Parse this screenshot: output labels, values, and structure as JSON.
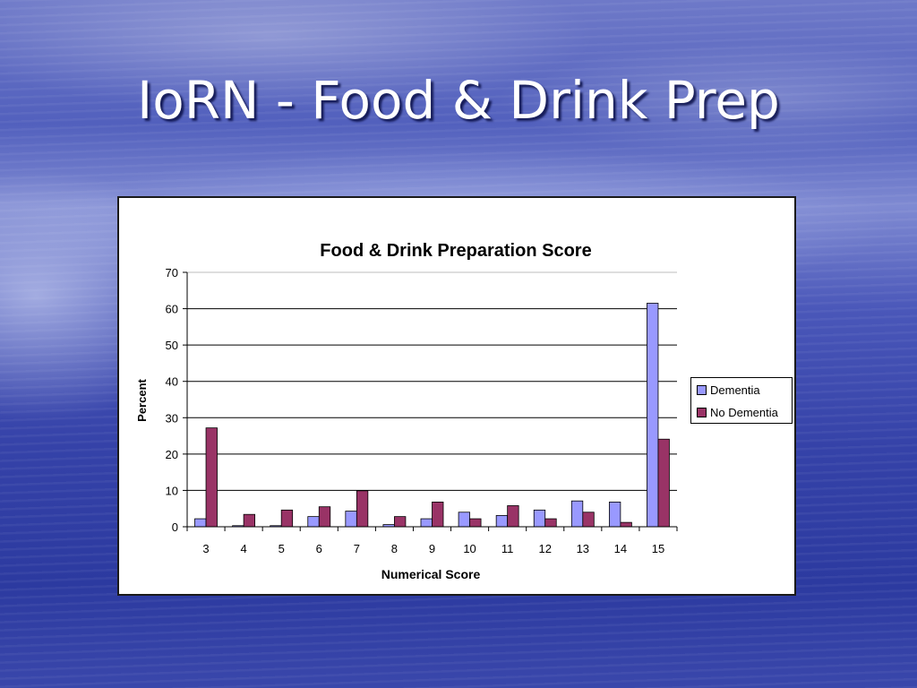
{
  "slide": {
    "title": "IoRN - Food & Drink Prep"
  },
  "chart_data": {
    "type": "bar",
    "title": "Food & Drink Preparation Score",
    "xlabel": "Numerical Score",
    "ylabel": "Percent",
    "categories": [
      "3",
      "4",
      "5",
      "6",
      "7",
      "8",
      "9",
      "10",
      "11",
      "12",
      "13",
      "14",
      "15"
    ],
    "series": [
      {
        "name": "Dementia",
        "color": "#9999ff",
        "values": [
          2.2,
          0.3,
          0.3,
          2.8,
          4.3,
          0.6,
          2.2,
          4.0,
          3.1,
          4.6,
          7.1,
          6.8,
          61.5
        ]
      },
      {
        "name": "No Dementia",
        "color": "#993366",
        "values": [
          27.2,
          3.4,
          4.6,
          5.5,
          9.9,
          2.8,
          6.8,
          2.2,
          5.8,
          2.2,
          4.0,
          1.2,
          24.1
        ]
      }
    ],
    "ylim": [
      0,
      70
    ],
    "yticks": [
      0,
      10,
      20,
      30,
      40,
      50,
      60,
      70
    ],
    "grid": true,
    "legend_position": "right"
  }
}
